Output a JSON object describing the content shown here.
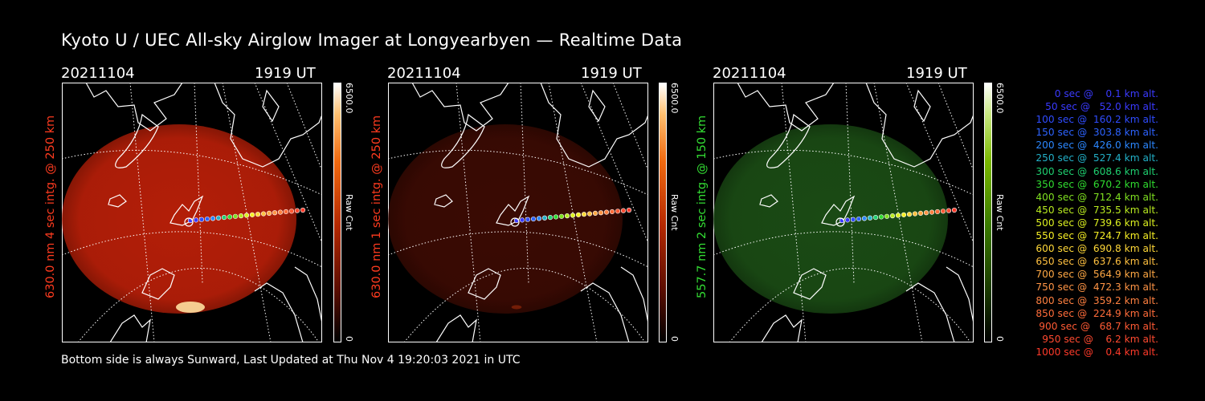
{
  "title": "Kyoto U / UEC All-sky Airglow Imager at Longyearbyen — Realtime Data",
  "footer": "Bottom side is always Sunward, Last Updated at Thu Nov  4 19:20:03 2021 in UTC",
  "panels": [
    {
      "date": "20211104",
      "time": "1919 UT",
      "side_label": "630.0 nm 4 sec intg. @ 250 km",
      "label_color": "#ff3b1f",
      "max_label": "6500.0",
      "min_label": "0",
      "unit_label": "Raw Cnt",
      "glow": "#b31e08",
      "glow_level": 1.0
    },
    {
      "date": "20211104",
      "time": "1919 UT",
      "side_label": "630.0 nm 1 sec intg. @ 250 km",
      "label_color": "#ff3b1f",
      "max_label": "6500.0",
      "min_label": "0",
      "unit_label": "Raw Cnt",
      "glow": "#3a0a03",
      "glow_level": 0.35
    },
    {
      "date": "20211104",
      "time": "1919 UT",
      "side_label": "557.7 nm 2 sec intg. @ 150 km",
      "label_color": "#33dd33",
      "max_label": "6500.0",
      "min_label": "0",
      "unit_label": "Raw Cnt",
      "glow": "#1a4a14",
      "glow_level": 0.6
    }
  ],
  "legend": [
    {
      "text": "0 sec @    0.1 km alt.",
      "color": "#3a3aff"
    },
    {
      "text": "50 sec @   52.0 km alt.",
      "color": "#3a3aff"
    },
    {
      "text": "100 sec @  160.2 km alt.",
      "color": "#2f4cff"
    },
    {
      "text": "150 sec @  303.8 km alt.",
      "color": "#2d63ff"
    },
    {
      "text": "200 sec @  426.0 km alt.",
      "color": "#2b87ff"
    },
    {
      "text": "250 sec @  527.4 km alt.",
      "color": "#22b0c8"
    },
    {
      "text": "300 sec @  608.6 km alt.",
      "color": "#1fd070"
    },
    {
      "text": "350 sec @  670.2 km alt.",
      "color": "#30dd30"
    },
    {
      "text": "400 sec @  712.4 km alt.",
      "color": "#7fe020"
    },
    {
      "text": "450 sec @  735.5 km alt.",
      "color": "#b8ea20"
    },
    {
      "text": "500 sec @  739.6 km alt.",
      "color": "#dcf020"
    },
    {
      "text": "550 sec @  724.7 km alt.",
      "color": "#f5ee25"
    },
    {
      "text": "600 sec @  690.8 km alt.",
      "color": "#ffd838"
    },
    {
      "text": "650 sec @  637.6 km alt.",
      "color": "#ffc040"
    },
    {
      "text": "700 sec @  564.9 km alt.",
      "color": "#ffa844"
    },
    {
      "text": "750 sec @  472.3 km alt.",
      "color": "#ff9445"
    },
    {
      "text": "800 sec @  359.2 km alt.",
      "color": "#ff8040"
    },
    {
      "text": "850 sec @  224.9 km alt.",
      "color": "#ff6c3a"
    },
    {
      "text": "900 sec @   68.7 km alt.",
      "color": "#ff5a34"
    },
    {
      "text": "950 sec @    6.2 km alt.",
      "color": "#ff4a30"
    },
    {
      "text": "1000 sec @    0.4 km alt.",
      "color": "#ff3a2a"
    }
  ]
}
